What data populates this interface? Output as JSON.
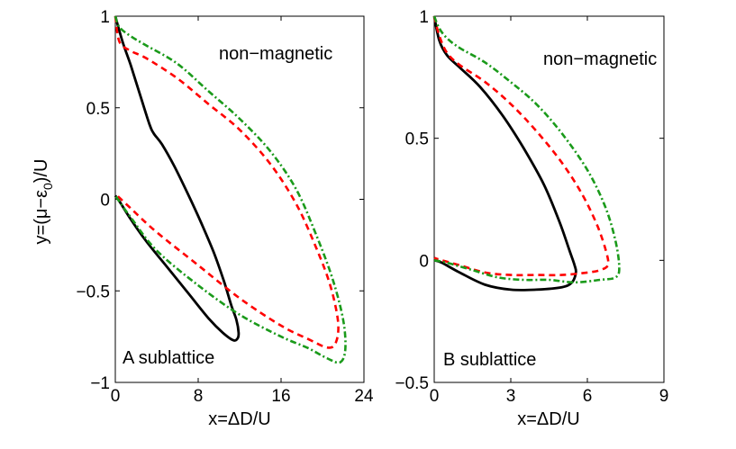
{
  "ylabel": "y=(μ−ε",
  "ylabel_sub": "0",
  "ylabel_end": ")/U",
  "chart_data": [
    {
      "type": "line",
      "panel": "left",
      "xlabel": "x=ΔD/U",
      "xlim": [
        0,
        24
      ],
      "ylim": [
        -1,
        1
      ],
      "xticks": [
        0,
        8,
        16,
        24
      ],
      "yticks": [
        -1,
        -0.5,
        0,
        0.5,
        1
      ],
      "xtick_labels": [
        "0",
        "8",
        "16",
        "24"
      ],
      "ytick_labels": [
        "−1",
        "−0.5",
        "0",
        "0.5",
        "1"
      ],
      "annotations": {
        "top": "non−magnetic",
        "bottom": "A sublattice"
      },
      "series": [
        {
          "name": "black solid",
          "color": "#000000",
          "dash": "solid",
          "x": [
            0.0,
            0.7,
            1.5,
            2.5,
            3.3,
            3.7,
            4.5,
            5.7,
            7.0,
            8.3,
            9.5,
            10.5,
            11.2,
            11.7,
            11.9,
            11.8,
            11.4,
            10.4,
            9.0,
            7.0,
            5.0,
            3.0,
            1.5,
            0.5,
            0.0
          ],
          "y": [
            1.0,
            0.86,
            0.73,
            0.55,
            0.41,
            0.36,
            0.3,
            0.18,
            0.03,
            -0.13,
            -0.29,
            -0.45,
            -0.58,
            -0.66,
            -0.73,
            -0.76,
            -0.77,
            -0.73,
            -0.65,
            -0.51,
            -0.37,
            -0.23,
            -0.11,
            -0.02,
            0.02
          ]
        },
        {
          "name": "red dashed",
          "color": "#ff0000",
          "dash": "dashed",
          "x": [
            0.0,
            0.4,
            1.5,
            3.0,
            6.0,
            9.0,
            12.0,
            15.0,
            17.5,
            19.5,
            20.8,
            21.5,
            21.3,
            20.5,
            18.5,
            16.0,
            12.0,
            8.0,
            4.0,
            1.5,
            0.0
          ],
          "y": [
            1.0,
            0.86,
            0.81,
            0.77,
            0.66,
            0.52,
            0.38,
            0.19,
            -0.03,
            -0.28,
            -0.48,
            -0.67,
            -0.78,
            -0.81,
            -0.76,
            -0.69,
            -0.54,
            -0.36,
            -0.18,
            -0.05,
            0.03
          ]
        },
        {
          "name": "green dash-dot",
          "color": "#1a9a1a",
          "dash": "dashdot",
          "x": [
            0.0,
            0.4,
            1.5,
            3.0,
            6.0,
            9.0,
            12.0,
            15.0,
            17.5,
            19.5,
            21.0,
            22.0,
            22.2,
            21.7,
            20.5,
            18.5,
            16.0,
            12.0,
            8.0,
            4.0,
            1.5,
            0.0
          ],
          "y": [
            1.0,
            0.94,
            0.89,
            0.84,
            0.74,
            0.59,
            0.44,
            0.26,
            0.05,
            -0.21,
            -0.44,
            -0.66,
            -0.82,
            -0.89,
            -0.87,
            -0.81,
            -0.75,
            -0.63,
            -0.47,
            -0.28,
            -0.1,
            0.02
          ]
        }
      ]
    },
    {
      "type": "line",
      "panel": "right",
      "xlabel": "x=ΔD/U",
      "xlim": [
        0,
        9
      ],
      "ylim": [
        -0.5,
        1
      ],
      "xticks": [
        0,
        3,
        6,
        9
      ],
      "yticks": [
        -0.5,
        0,
        0.5,
        1
      ],
      "xtick_labels": [
        "0",
        "3",
        "6",
        "9"
      ],
      "ytick_labels": [
        "−0.5",
        "0",
        "0.5",
        "1"
      ],
      "annotations": {
        "top": "non−magnetic",
        "bottom": "B sublattice"
      },
      "series": [
        {
          "name": "black solid",
          "color": "#000000",
          "dash": "solid",
          "x": [
            0.0,
            0.2,
            0.5,
            1.0,
            1.8,
            2.7,
            3.5,
            4.3,
            4.9,
            5.3,
            5.5,
            5.55,
            5.4,
            5.0,
            4.0,
            3.0,
            2.0,
            1.0,
            0.3,
            0.0
          ],
          "y": [
            1.0,
            0.9,
            0.84,
            0.79,
            0.71,
            0.59,
            0.46,
            0.31,
            0.16,
            0.04,
            -0.02,
            -0.05,
            -0.09,
            -0.11,
            -0.12,
            -0.12,
            -0.1,
            -0.05,
            -0.01,
            0.0
          ]
        },
        {
          "name": "red dashed",
          "color": "#ff0000",
          "dash": "dashed",
          "x": [
            0.0,
            0.2,
            0.5,
            1.0,
            2.0,
            3.0,
            4.0,
            5.0,
            5.8,
            6.4,
            6.75,
            6.8,
            6.5,
            6.0,
            5.0,
            4.0,
            3.0,
            2.0,
            1.0,
            0.3,
            0.0
          ],
          "y": [
            1.0,
            0.92,
            0.85,
            0.8,
            0.73,
            0.64,
            0.53,
            0.4,
            0.27,
            0.14,
            0.03,
            -0.02,
            -0.04,
            -0.05,
            -0.06,
            -0.06,
            -0.06,
            -0.05,
            -0.02,
            0.0,
            0.01
          ]
        },
        {
          "name": "green dash-dot",
          "color": "#1a9a1a",
          "dash": "dashdot",
          "x": [
            0.0,
            0.2,
            0.5,
            1.0,
            2.0,
            3.0,
            4.0,
            5.0,
            6.0,
            6.7,
            7.1,
            7.25,
            7.1,
            6.5,
            5.5,
            4.5,
            3.5,
            2.5,
            1.5,
            0.5,
            0.0
          ],
          "y": [
            1.0,
            0.95,
            0.91,
            0.87,
            0.81,
            0.73,
            0.64,
            0.52,
            0.37,
            0.22,
            0.08,
            -0.03,
            -0.07,
            -0.08,
            -0.09,
            -0.08,
            -0.08,
            -0.07,
            -0.04,
            -0.01,
            0.0
          ]
        }
      ]
    }
  ]
}
